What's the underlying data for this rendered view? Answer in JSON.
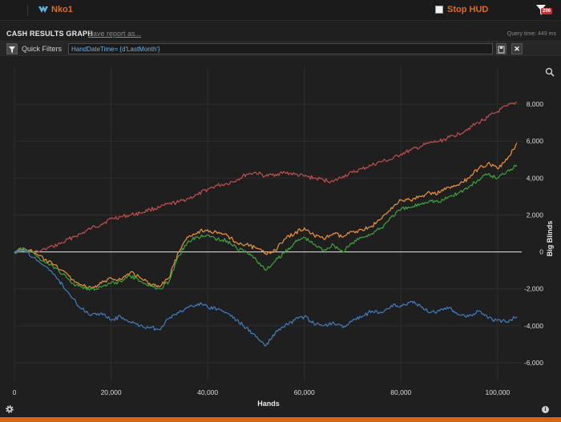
{
  "topbar": {
    "user_name": "Nko1",
    "stop_hud_label": "Stop HUD",
    "filter_badge": "296"
  },
  "header": {
    "title": "CASH RESULTS GRAPH",
    "save_report": "Save report as...",
    "query_time": "Query time: 449 ms"
  },
  "filter": {
    "label": "Quick Filters",
    "value": "HandDateTime= {d'LastMonth'}"
  },
  "colors": {
    "accent": "#e06a1e",
    "red_series": "#c0504d",
    "orange_series": "#f0923a",
    "green_series": "#3aa638",
    "blue_series": "#3f7fc1",
    "zero_line": "#e8e8e8"
  },
  "chart_data": {
    "type": "line",
    "xlabel": "Hands",
    "ylabel": "Big Blinds",
    "xlim": [
      0,
      105000
    ],
    "ylim": [
      -7000,
      10000
    ],
    "x_ticks": [
      0,
      20000,
      40000,
      60000,
      80000,
      100000
    ],
    "x_tick_labels": [
      "0",
      "20,000",
      "40,000",
      "60,000",
      "80,000",
      "100,000"
    ],
    "y_ticks": [
      8000,
      6000,
      4000,
      2000,
      0,
      -2000,
      -4000,
      -6000
    ],
    "y_tick_labels": [
      "8,000",
      "6,000",
      "4,000",
      "2,000",
      "0",
      "-2,000",
      "-4,000",
      "-6,000"
    ],
    "grid": true,
    "x": [
      0,
      2000,
      5000,
      8000,
      10000,
      12000,
      14000,
      16000,
      18000,
      20000,
      22000,
      24000,
      26000,
      28000,
      30000,
      32000,
      34000,
      36000,
      38000,
      40000,
      42000,
      44000,
      46000,
      48000,
      50000,
      52000,
      54000,
      56000,
      58000,
      60000,
      62000,
      64000,
      66000,
      68000,
      70000,
      72000,
      74000,
      76000,
      78000,
      80000,
      82000,
      84000,
      86000,
      88000,
      90000,
      92000,
      94000,
      96000,
      98000,
      100000,
      102000,
      104000
    ],
    "series": [
      {
        "color": "red",
        "values": [
          0,
          100,
          0,
          300,
          500,
          800,
          1000,
          1300,
          1500,
          1800,
          1900,
          2000,
          2100,
          2300,
          2400,
          2600,
          2700,
          2900,
          3100,
          3400,
          3600,
          3700,
          3900,
          4200,
          4300,
          4100,
          4200,
          4300,
          4200,
          4100,
          4000,
          3900,
          3800,
          4100,
          4300,
          4500,
          4700,
          4900,
          5000,
          5300,
          5500,
          5700,
          5900,
          6000,
          6200,
          6400,
          6700,
          7000,
          7300,
          7600,
          7900,
          8100
        ]
      },
      {
        "color": "orange",
        "values": [
          0,
          200,
          -200,
          -700,
          -1000,
          -1500,
          -1800,
          -2000,
          -1700,
          -1400,
          -1500,
          -1100,
          -1400,
          -1700,
          -1900,
          -1400,
          0,
          800,
          1100,
          1200,
          1000,
          900,
          500,
          400,
          200,
          -100,
          100,
          700,
          1000,
          1300,
          900,
          700,
          1000,
          800,
          1100,
          1200,
          1400,
          1800,
          2400,
          2800,
          2800,
          3000,
          3200,
          3200,
          3500,
          3600,
          4000,
          4500,
          4800,
          4500,
          5000,
          5900
        ]
      },
      {
        "color": "green",
        "values": [
          0,
          200,
          -300,
          -800,
          -1200,
          -1700,
          -1900,
          -2000,
          -1900,
          -1700,
          -1600,
          -1300,
          -1600,
          -1800,
          -2000,
          -1600,
          -200,
          600,
          800,
          900,
          700,
          600,
          200,
          0,
          -400,
          -1000,
          -500,
          0,
          500,
          800,
          400,
          100,
          400,
          0,
          500,
          800,
          1000,
          1300,
          1900,
          2300,
          2400,
          2600,
          2800,
          2700,
          3000,
          3200,
          3500,
          3900,
          4200,
          4000,
          4400,
          4700
        ]
      },
      {
        "color": "blue",
        "values": [
          0,
          100,
          -500,
          -1200,
          -1800,
          -2500,
          -3100,
          -3400,
          -3300,
          -3700,
          -3500,
          -3800,
          -4000,
          -4100,
          -4200,
          -3600,
          -3300,
          -3000,
          -2800,
          -3000,
          -3100,
          -3300,
          -3700,
          -4100,
          -4600,
          -5100,
          -4400,
          -4000,
          -3700,
          -3500,
          -3900,
          -4000,
          -3800,
          -4100,
          -3700,
          -3500,
          -3200,
          -3300,
          -2900,
          -2900,
          -2700,
          -2900,
          -3300,
          -3200,
          -3000,
          -3400,
          -3500,
          -3200,
          -3600,
          -3700,
          -3800,
          -3500
        ]
      }
    ]
  }
}
